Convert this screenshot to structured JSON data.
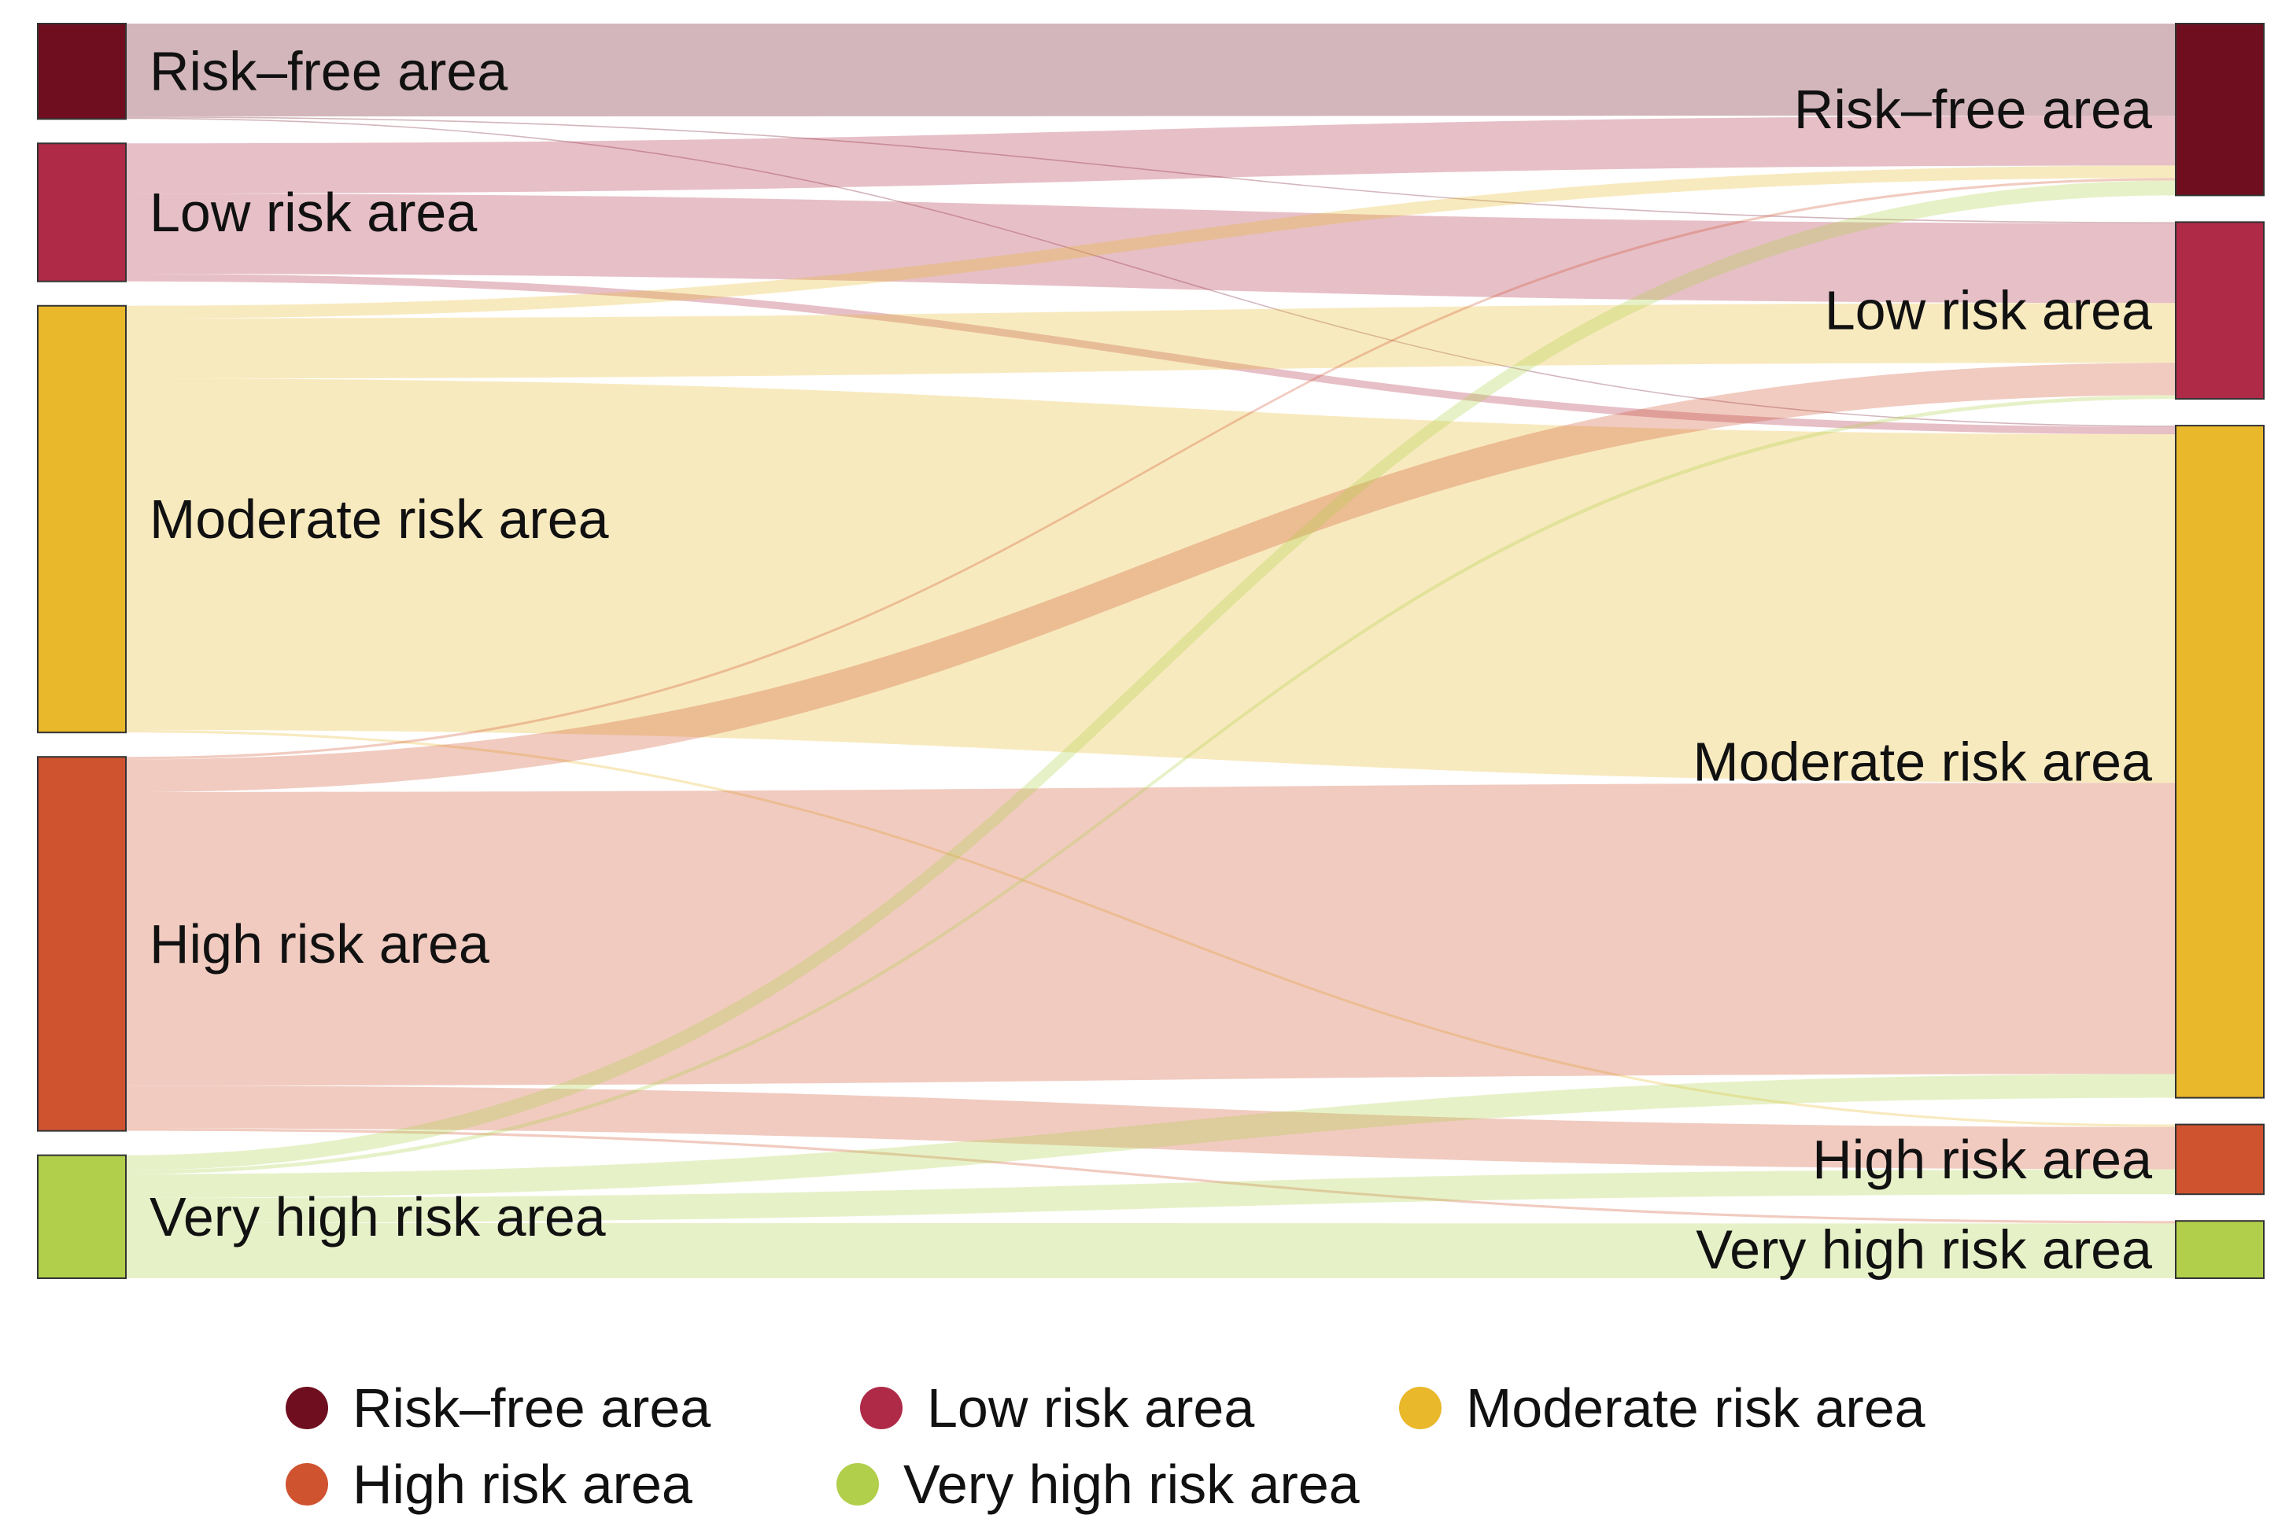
{
  "chart_data": {
    "type": "sankey",
    "colors": {
      "Risk–free area": "#6e0e1e",
      "Low risk area": "#ae2a47",
      "Moderate risk area": "#e9b82b",
      "High risk area": "#d05330",
      "Very high risk area": "#b1cf4a"
    },
    "left_nodes": [
      {
        "name": "Risk–free area",
        "value": 38
      },
      {
        "name": "Low risk area",
        "value": 55
      },
      {
        "name": "Moderate risk area",
        "value": 170
      },
      {
        "name": "High risk area",
        "value": 149
      },
      {
        "name": "Very high risk area",
        "value": 49
      }
    ],
    "right_nodes": [
      {
        "name": "Risk–free area",
        "value": 69
      },
      {
        "name": "Low risk area",
        "value": 71
      },
      {
        "name": "Moderate risk area",
        "value": 270
      },
      {
        "name": "High risk area",
        "value": 28
      },
      {
        "name": "Very high risk area",
        "value": 23
      }
    ],
    "links": [
      {
        "source": "Risk–free area",
        "target": "Risk–free area",
        "value": 37
      },
      {
        "source": "Risk–free area",
        "target": "Low risk area",
        "value": 0.5
      },
      {
        "source": "Risk–free area",
        "target": "Moderate risk area",
        "value": 0.5
      },
      {
        "source": "Low risk area",
        "target": "Risk–free area",
        "value": 20
      },
      {
        "source": "Low risk area",
        "target": "Low risk area",
        "value": 32
      },
      {
        "source": "Low risk area",
        "target": "Moderate risk area",
        "value": 3
      },
      {
        "source": "Moderate risk area",
        "target": "Risk–free area",
        "value": 5
      },
      {
        "source": "Moderate risk area",
        "target": "Low risk area",
        "value": 24
      },
      {
        "source": "Moderate risk area",
        "target": "Moderate risk area",
        "value": 140
      },
      {
        "source": "Moderate risk area",
        "target": "High risk area",
        "value": 1
      },
      {
        "source": "High risk area",
        "target": "Risk–free area",
        "value": 1
      },
      {
        "source": "High risk area",
        "target": "Low risk area",
        "value": 13
      },
      {
        "source": "High risk area",
        "target": "Moderate risk area",
        "value": 117
      },
      {
        "source": "High risk area",
        "target": "High risk area",
        "value": 17
      },
      {
        "source": "High risk area",
        "target": "Very high risk area",
        "value": 1
      },
      {
        "source": "Very high risk area",
        "target": "Risk–free area",
        "value": 6
      },
      {
        "source": "Very high risk area",
        "target": "Low risk area",
        "value": 1.5
      },
      {
        "source": "Very high risk area",
        "target": "Moderate risk area",
        "value": 9.5
      },
      {
        "source": "Very high risk area",
        "target": "High risk area",
        "value": 10
      },
      {
        "source": "Very high risk area",
        "target": "Very high risk area",
        "value": 22
      }
    ],
    "legend": {
      "placement": "bottom",
      "entries": [
        "Risk–free area",
        "Low risk area",
        "Moderate risk area",
        "High risk area",
        "Very high risk area"
      ]
    }
  }
}
